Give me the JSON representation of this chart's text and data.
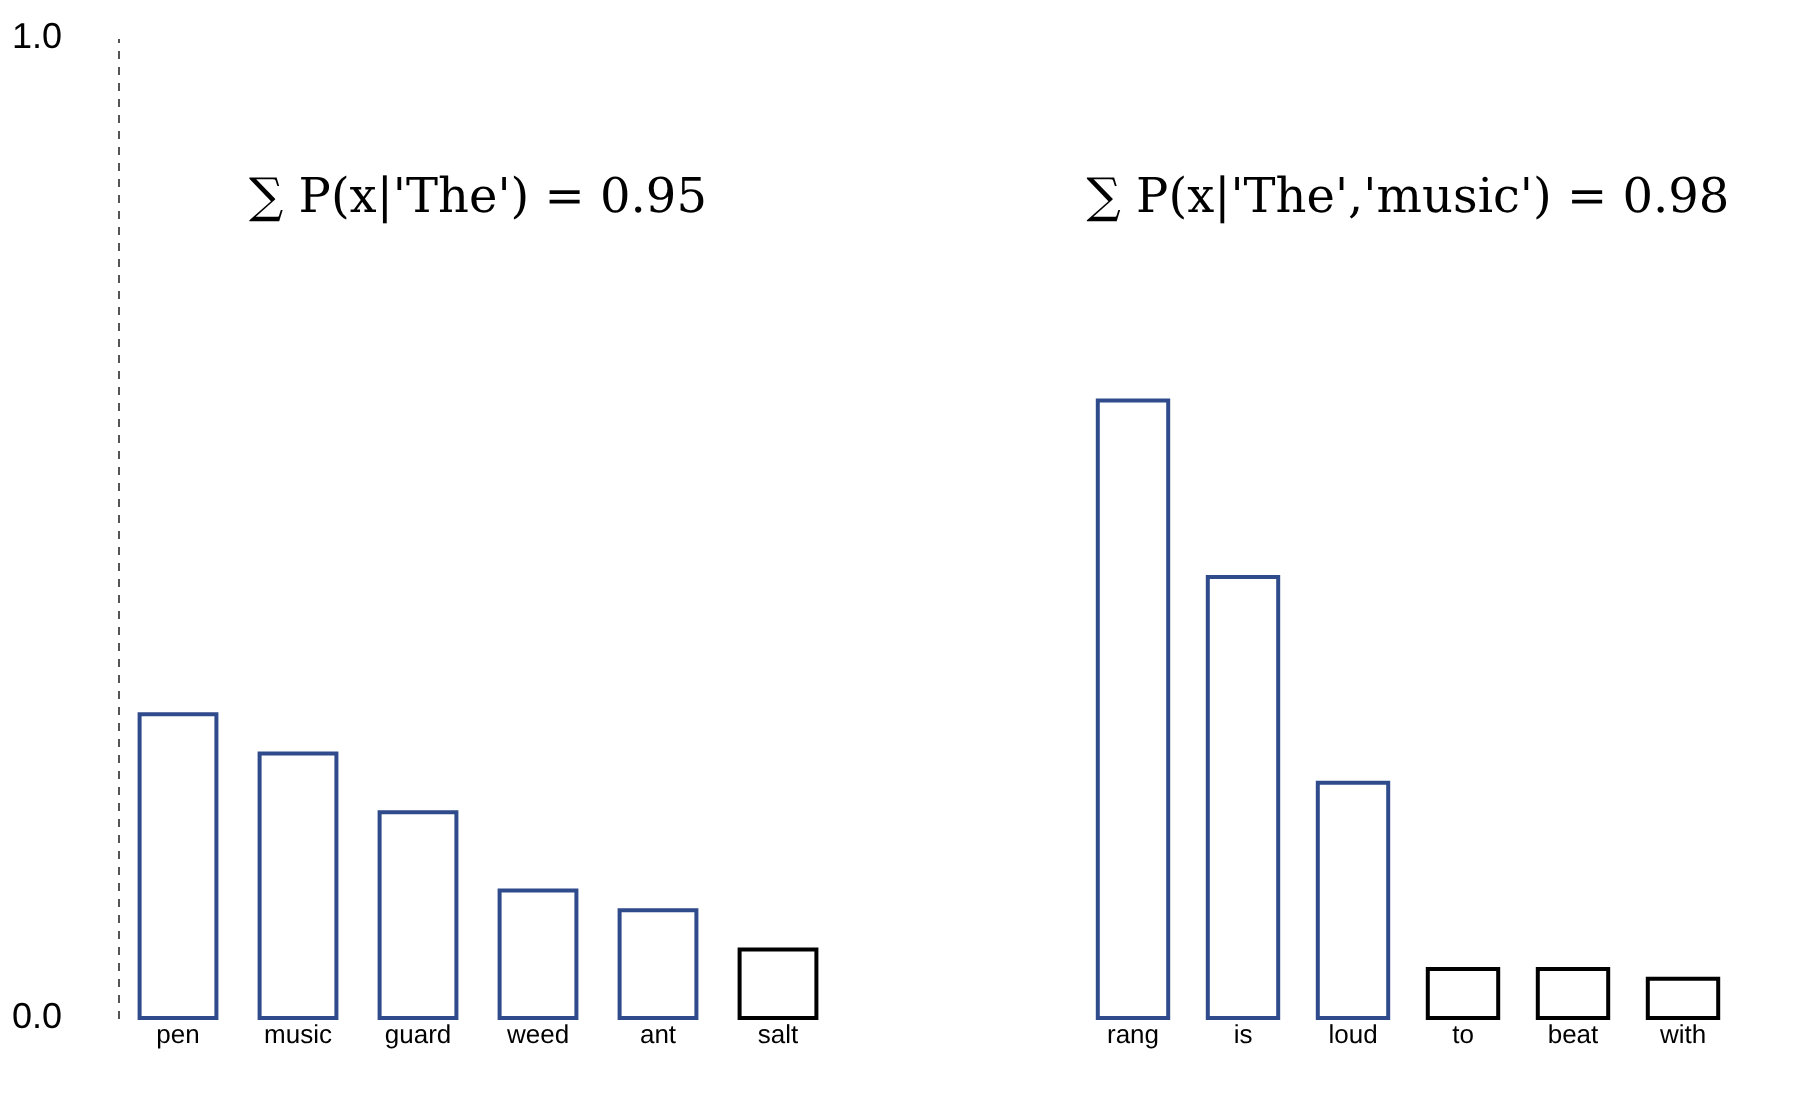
{
  "chart_data": [
    {
      "type": "bar",
      "categories": [
        "pen",
        "music",
        "guard",
        "weed",
        "ant",
        "salt"
      ],
      "values": [
        0.31,
        0.27,
        0.21,
        0.13,
        0.11,
        0.07
      ],
      "colors": [
        "#2f4b8c",
        "#2f4b8c",
        "#2f4b8c",
        "#2f4b8c",
        "#2f4b8c",
        "#000000"
      ],
      "ylim": [
        0,
        1
      ],
      "yticks": [
        {
          "value": 0,
          "label": "0.0"
        },
        {
          "value": 1,
          "label": "1.0"
        }
      ],
      "grid": false,
      "annotations": [
        "∑ P(x|'The') = 0.95"
      ]
    },
    {
      "type": "bar",
      "categories": [
        "rang",
        "is",
        "loud",
        "to",
        "beat",
        "with"
      ],
      "values": [
        0.63,
        0.45,
        0.24,
        0.05,
        0.05,
        0.04
      ],
      "colors": [
        "#2f4b8c",
        "#2f4b8c",
        "#2f4b8c",
        "#000000",
        "#000000",
        "#000000"
      ],
      "ylim": [
        0,
        1
      ],
      "tick_labels": "x",
      "grid": false,
      "annotations": [
        "∑ P(x|'The','music') = 0.98"
      ]
    }
  ]
}
